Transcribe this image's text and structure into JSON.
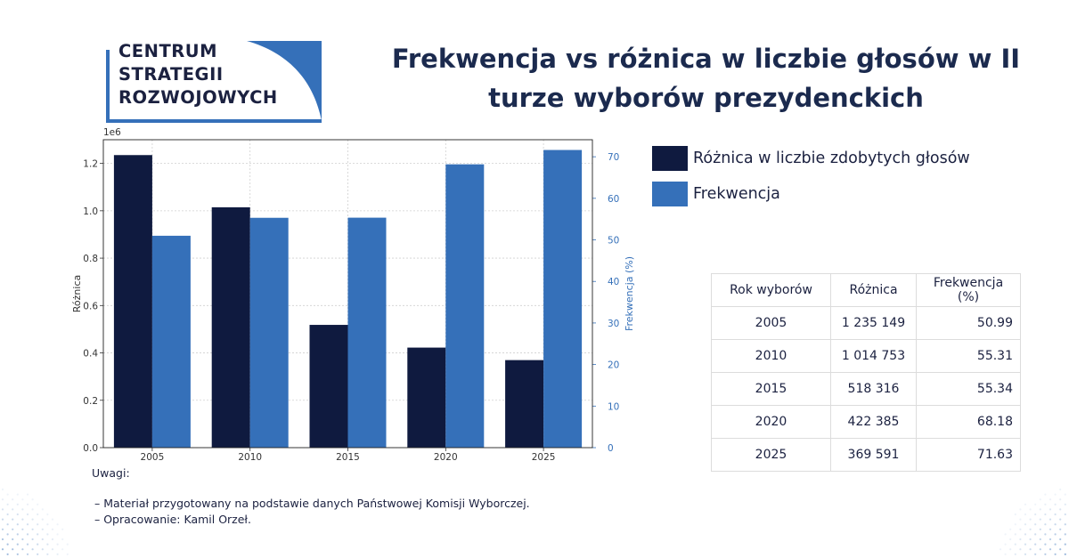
{
  "logo": {
    "line1": "CENTRUM",
    "line2": "STRATEGII",
    "line3": "ROZWOJOWYCH"
  },
  "title_line1": "Frekwencja vs różnica w liczbie głosów w II",
  "title_line2": "turze wyborów prezydenckich",
  "colors": {
    "diff": "#0f1a3f",
    "turnout": "#3570b9",
    "title": "#1b2a4e"
  },
  "chart_data": {
    "type": "bar",
    "categories": [
      "2005",
      "2010",
      "2015",
      "2020",
      "2025"
    ],
    "series": [
      {
        "name": "Różnica w liczbie zdobytych głosów",
        "axis": "left",
        "values": [
          1235149,
          1014753,
          518316,
          422385,
          369591
        ]
      },
      {
        "name": "Frekwencja",
        "axis": "right",
        "values": [
          50.99,
          55.31,
          55.34,
          68.18,
          71.63
        ]
      }
    ],
    "ylabel": "Różnica",
    "y2label": "Frekwencja (%)",
    "y_offset_label": "1e6",
    "ylim": [
      0,
      1300000
    ],
    "y2lim": [
      0,
      74.1
    ],
    "y_ticks": [
      "0.0",
      "0.2",
      "0.4",
      "0.6",
      "0.8",
      "1.0",
      "1.2"
    ],
    "y2_ticks": [
      "0",
      "10",
      "20",
      "30",
      "40",
      "50",
      "60",
      "70"
    ],
    "grid": true,
    "legend": "right"
  },
  "table": {
    "headers": [
      "Rok wyborów",
      "Różnica",
      "Frekwencja (%)"
    ],
    "rows": [
      [
        "2005",
        "1 235 149",
        "50.99"
      ],
      [
        "2010",
        "1 014 753",
        "55.31"
      ],
      [
        "2015",
        "518 316",
        "55.34"
      ],
      [
        "2020",
        "422 385",
        "68.18"
      ],
      [
        "2025",
        "369 591",
        "71.63"
      ]
    ]
  },
  "notes": {
    "heading": "Uwagi:",
    "items": [
      "– Materiał przygotowany na podstawie danych Państwowej Komisji Wyborczej.",
      "– Opracowanie: Kamil Orzeł."
    ]
  }
}
